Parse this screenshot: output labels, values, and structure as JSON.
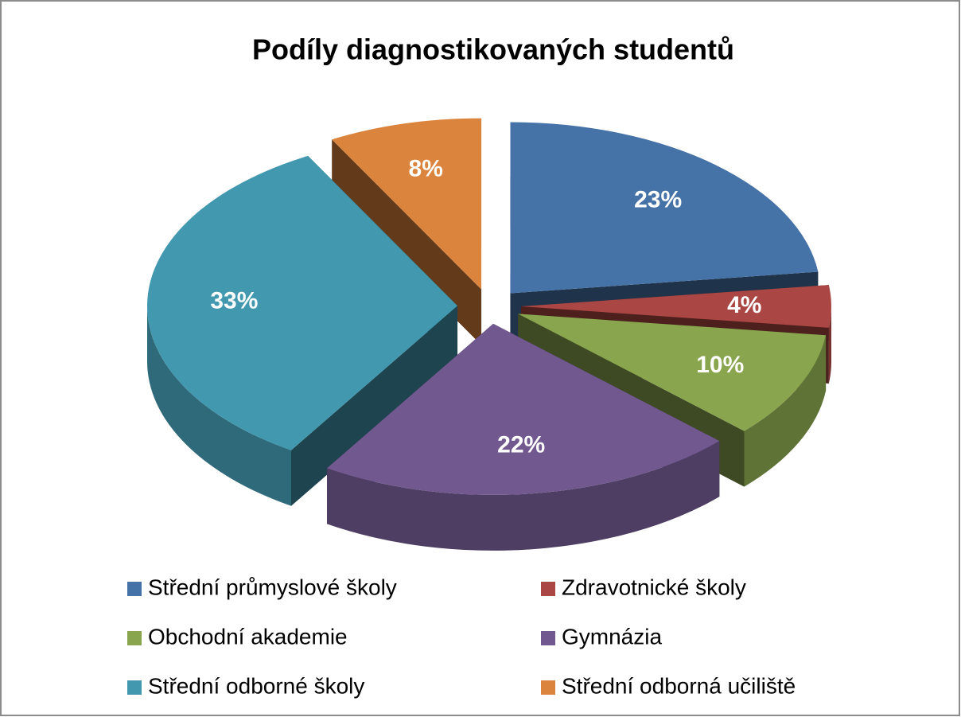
{
  "chart_data": {
    "type": "pie",
    "title": "Podíly diagnostikovaných studentů",
    "categories": [
      "Střední průmyslové školy",
      "Zdravotnické školy",
      "Obchodní akademie",
      "Gymnázia",
      "Střední odborné školy",
      "Střední odborná učiliště"
    ],
    "values": [
      23,
      4,
      10,
      22,
      33,
      8
    ],
    "value_labels": [
      "23%",
      "4%",
      "10%",
      "22%",
      "33%",
      "8%"
    ],
    "colors": [
      "#4572a7",
      "#aa4643",
      "#89a54e",
      "#71588f",
      "#4198af",
      "#db843d"
    ]
  }
}
